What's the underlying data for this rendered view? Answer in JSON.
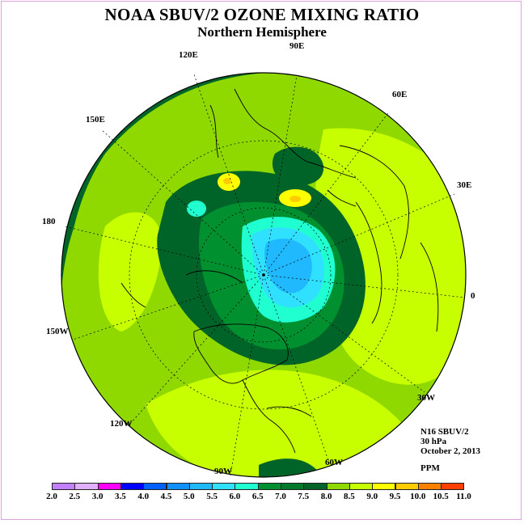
{
  "title": "NOAA SBUV/2 OZONE MIXING RATIO",
  "subtitle": "Northern Hemisphere",
  "longitude_labels": [
    "90E",
    "60E",
    "30E",
    "0",
    "30W",
    "60W",
    "90W",
    "120W",
    "150W",
    "180",
    "150E",
    "120E"
  ],
  "info": {
    "instrument": "N16 SBUV/2",
    "level": "30 hPa",
    "date": "October 2, 2013",
    "units": "PPM"
  },
  "colorbar": {
    "ticks": [
      "2.0",
      "2.5",
      "3.0",
      "3.5",
      "4.0",
      "4.5",
      "5.0",
      "5.5",
      "6.0",
      "6.5",
      "7.0",
      "7.5",
      "8.0",
      "8.5",
      "9.0",
      "9.5",
      "10.0",
      "10.5",
      "11.0"
    ],
    "colors": [
      "#c080ff",
      "#e0b0ff",
      "#ff00ff",
      "#0000ff",
      "#0060ff",
      "#1090ff",
      "#20b8ff",
      "#30e0ff",
      "#20ffd0",
      "#009030",
      "#007a2a",
      "#006428",
      "#8fd800",
      "#c8ff00",
      "#ffff00",
      "#ffcc00",
      "#ff8000",
      "#ff4000",
      "#ff0000",
      "#8b5a3a"
    ]
  },
  "fields": {
    "dark_green": "#006428",
    "mid_green": "#007a2a",
    "green": "#009030",
    "light_green": "#8fd800",
    "yellow_green": "#c8ff00",
    "yellow": "#ffff00",
    "orange": "#ffcc00",
    "cyan": "#20ffd0",
    "light_blue": "#30e0ff",
    "blue": "#20b8ff"
  }
}
